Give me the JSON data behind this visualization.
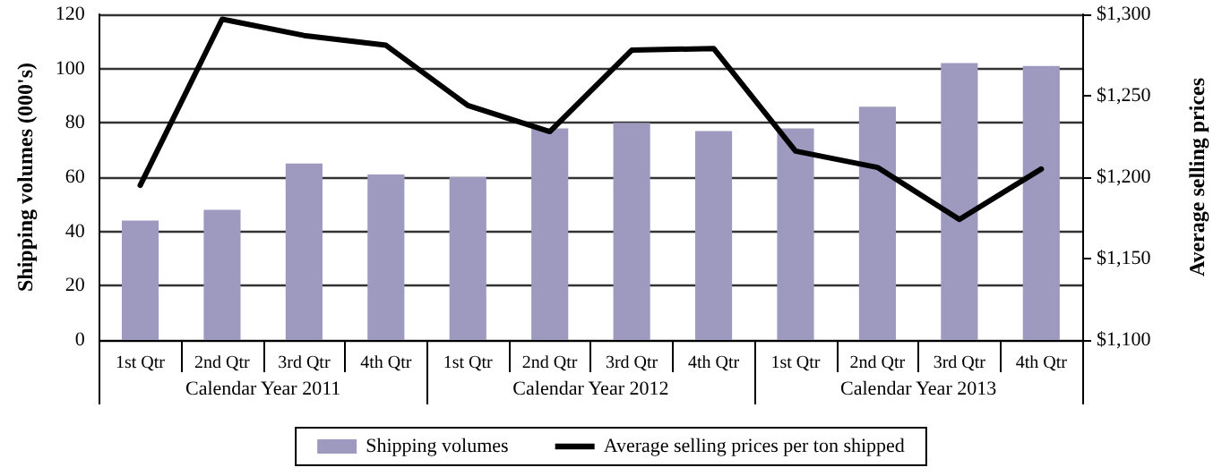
{
  "chart_data": {
    "type": "bar",
    "ylabel": "Shipping volumes (000's)",
    "y2label": "Average selling prices",
    "categories": [
      "1st Qtr",
      "2nd Qtr",
      "3rd Qtr",
      "4th Qtr",
      "1st Qtr",
      "2nd Qtr",
      "3rd Qtr",
      "4th Qtr",
      "1st Qtr",
      "2nd Qtr",
      "3rd Qtr",
      "4th Qtr"
    ],
    "annotations": [
      "Calendar Year 2011",
      "Calendar Year 2012",
      "Calendar Year 2013"
    ],
    "series": [
      {
        "name": "Shipping volumes",
        "color": "#9e99bf",
        "values": [
          44,
          48,
          65,
          61,
          60,
          78,
          80,
          77,
          78,
          86,
          102,
          101
        ]
      },
      {
        "name": "Average selling prices per ton shipped",
        "type": "line",
        "axis": "y2",
        "color": "#000000",
        "values": [
          1195,
          1297,
          1287,
          1281,
          1244,
          1228,
          1278,
          1279,
          1216,
          1206,
          1174,
          1205
        ]
      }
    ],
    "ylim": [
      0,
      120
    ],
    "yticks": [
      0,
      20,
      40,
      60,
      80,
      100,
      120
    ],
    "y2lim": [
      1100,
      1300
    ],
    "y2ticks": [
      {
        "value": 1100,
        "label": "$1,100"
      },
      {
        "value": 1150,
        "label": "$1,150"
      },
      {
        "value": 1200,
        "label": "$1,200"
      },
      {
        "value": 1250,
        "label": "$1,250"
      },
      {
        "value": 1300,
        "label": "$1,300"
      }
    ],
    "grid": "y",
    "legend": "bottom",
    "marker": "none",
    "line_style": "solid"
  }
}
